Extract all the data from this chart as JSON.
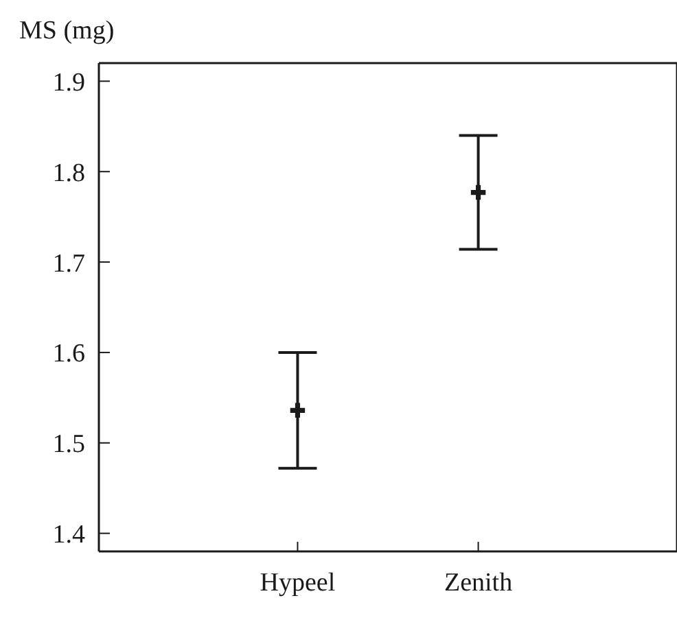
{
  "chart_data": {
    "type": "scatter",
    "ylabel": "MS (mg)",
    "categories": [
      "Hypeel",
      "Zenith"
    ],
    "series": [
      {
        "color": "#1a1a1a",
        "values": [
          1.536,
          1.777
        ],
        "errors": [
          0.064,
          0.063
        ]
      }
    ],
    "ylim": [
      1.38,
      1.92
    ],
    "yticks": [
      1.4,
      1.5,
      1.6,
      1.7,
      1.8,
      1.9
    ],
    "grid": false,
    "marker": "cross"
  }
}
